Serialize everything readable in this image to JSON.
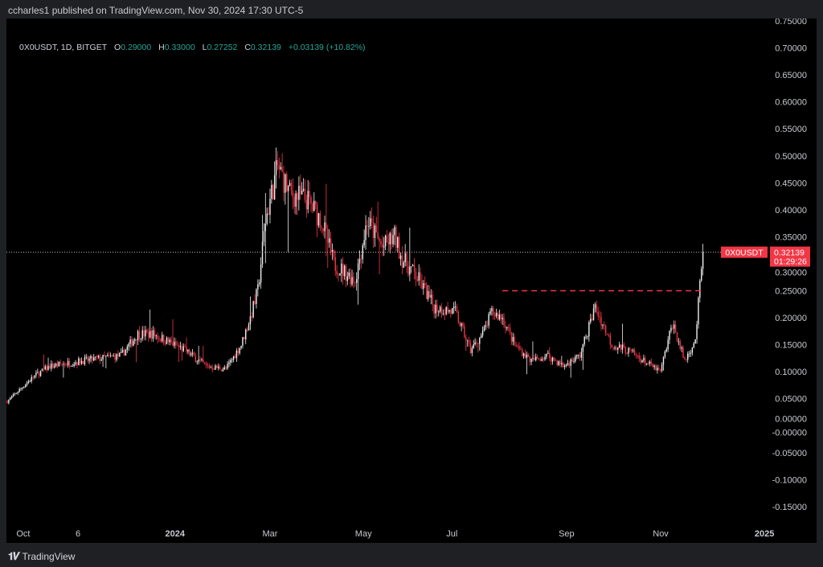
{
  "header": {
    "published": "ccharles1 published on TradingView.com, Nov 30, 2024 17:30 UTC-5"
  },
  "legend": {
    "symbol": "0X0USDT, 1D, BITGET",
    "o_label": "O",
    "o": "0.29000",
    "h_label": "H",
    "h": "0.33000",
    "l_label": "L",
    "l": "0.27252",
    "c_label": "C",
    "c": "0.32139",
    "change": "+0.03139 (+10.82%)"
  },
  "price_tag": {
    "symbol": "0X0USDT",
    "price": "0.32139",
    "countdown": "01:29:26"
  },
  "brand": "TradingView",
  "colors": {
    "up": "#f0f0f0",
    "down": "#f23645",
    "accent": "#f23645",
    "bg": "#000000"
  },
  "chart_data": {
    "type": "candlestick",
    "title": "0X0USDT, 1D, BITGET",
    "ylim": [
      -0.175,
      0.75
    ],
    "y_ticks": [
      "0.75000",
      "0.70000",
      "0.65000",
      "0.60000",
      "0.55000",
      "0.50000",
      "0.45000",
      "0.40000",
      "0.35000",
      "0.30000",
      "0.25000",
      "0.20000",
      "0.15000",
      "0.10000",
      "0.05000",
      "0.00000",
      "-0.00000",
      "-0.05000",
      "-0.10000",
      "-0.15000"
    ],
    "y_tick_values": [
      0.75,
      0.7,
      0.65,
      0.6,
      0.55,
      0.5,
      0.45,
      0.4,
      0.35,
      0.3,
      0.25,
      0.2,
      0.15,
      0.1,
      0.05,
      0.0,
      0.0,
      -0.05,
      -0.1,
      -0.15
    ],
    "x_ticks": [
      {
        "label": "Oct",
        "day": 6
      },
      {
        "label": "6",
        "day": 45
      },
      {
        "label": "2024",
        "day": 104
      },
      {
        "label": "Mar",
        "day": 168
      },
      {
        "label": "May",
        "day": 229
      },
      {
        "label": "Jul",
        "day": 289
      },
      {
        "label": "Sep",
        "day": 363
      },
      {
        "label": "Nov",
        "day": 425
      },
      {
        "label": "2025",
        "day": 492
      }
    ],
    "close_path_days": [
      0,
      17,
      28,
      49,
      75,
      86,
      96,
      117,
      131,
      144,
      154,
      160,
      165,
      170,
      178,
      186,
      197,
      207,
      215,
      229,
      237,
      247,
      255,
      260,
      271,
      281,
      295,
      305,
      313,
      319,
      326,
      334,
      345,
      356,
      366,
      377,
      387,
      398,
      408,
      419,
      430,
      438,
      446,
      453,
      458
    ],
    "close_path_prices": [
      0.045,
      0.09,
      0.11,
      0.12,
      0.13,
      0.17,
      0.17,
      0.14,
      0.11,
      0.105,
      0.15,
      0.2,
      0.25,
      0.38,
      0.48,
      0.43,
      0.42,
      0.38,
      0.3,
      0.27,
      0.38,
      0.33,
      0.35,
      0.31,
      0.27,
      0.22,
      0.21,
      0.14,
      0.17,
      0.21,
      0.2,
      0.15,
      0.12,
      0.13,
      0.11,
      0.13,
      0.22,
      0.15,
      0.14,
      0.12,
      0.1,
      0.19,
      0.12,
      0.16,
      0.32139
    ],
    "last_price": 0.32139,
    "horizontal_line": {
      "price": 0.25,
      "from_day": 326,
      "to_day": 458,
      "style": "dashed"
    }
  }
}
